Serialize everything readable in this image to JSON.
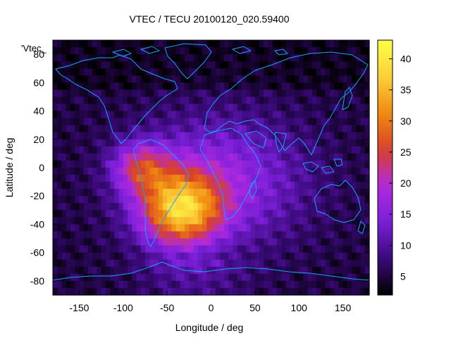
{
  "chart_data": {
    "type": "heatmap",
    "title": "VTEC / TECU 20100120_020.59400",
    "xlabel": "Longitude / deg",
    "ylabel": "Latitude / deg",
    "xlim": [
      -180,
      180
    ],
    "ylim": [
      -90,
      90
    ],
    "x_ticks": [
      -150,
      -100,
      -50,
      0,
      50,
      100,
      150
    ],
    "y_ticks": [
      -80,
      -60,
      -40,
      -20,
      0,
      20,
      40,
      60,
      80
    ],
    "series_key": "'Vtec_",
    "colorbar": {
      "range": [
        2,
        43
      ],
      "ticks": [
        5,
        10,
        15,
        20,
        25,
        30,
        35,
        40
      ],
      "colormap": [
        "#000000",
        "#3a0a7a",
        "#7a1fd9",
        "#b02adf",
        "#d8402a",
        "#f08a10",
        "#fcd03a",
        "#ffff44"
      ]
    },
    "grid_resolution_deg": 5,
    "tec_peak": {
      "lon": -35,
      "lat": -30,
      "value": 42
    },
    "tec_lobe": {
      "lon": -80,
      "lat": 0,
      "value": 30
    },
    "tec_background": 5,
    "coastline_color": "#18a0ff"
  }
}
